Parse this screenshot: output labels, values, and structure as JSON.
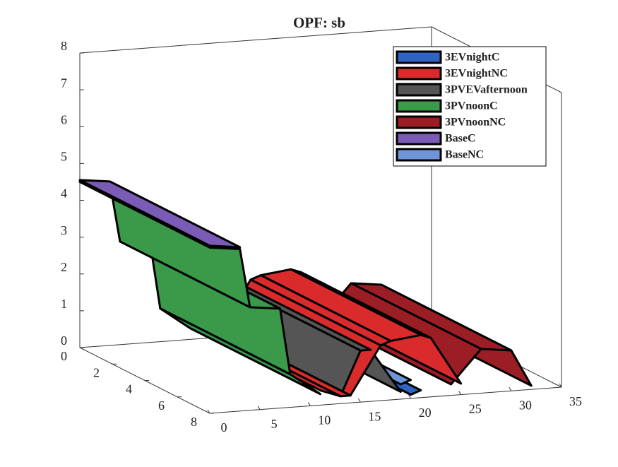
{
  "chart_data": {
    "type": "surface3d",
    "title": "OPF: sb",
    "xlim": [
      0,
      35
    ],
    "xticks": [
      0,
      5,
      10,
      15,
      20,
      25,
      30,
      35
    ],
    "ylim": [
      0,
      8
    ],
    "yticks": [
      0,
      2,
      4,
      6,
      8
    ],
    "zlim": [
      0,
      8
    ],
    "zticks": [
      0,
      1,
      2,
      3,
      4,
      5,
      6,
      7,
      8
    ],
    "legend": "top-right",
    "series": [
      {
        "name": "3EVnightC",
        "color": "#2f64c0",
        "x": [
          20,
          21
        ],
        "values": [
          0.1,
          0.2
        ]
      },
      {
        "name": "3EVnightNC",
        "color": "#d92b2b",
        "x": [
          11,
          13,
          14,
          17,
          18,
          21,
          22,
          25
        ],
        "values": [
          0.4,
          0.2,
          0.2,
          1.5,
          1.6,
          1.7,
          1.6,
          0.3
        ]
      },
      {
        "name": "3PVEVafternoon",
        "color": "#555555",
        "x": [
          13,
          15,
          16,
          19
        ],
        "values": [
          0.2,
          1.4,
          1.4,
          0.2
        ]
      },
      {
        "name": "3PVnoonC",
        "color": "#3a9a4a",
        "x": [
          0,
          3,
          4,
          7,
          8,
          11
        ],
        "values": [
          4.5,
          4.4,
          2.8,
          2.7,
          0.9,
          0.3
        ]
      },
      {
        "name": "3PVnoonNC",
        "color": "#9b1e24",
        "x": [
          24,
          27,
          30,
          32
        ],
        "values": [
          0.3,
          1.2,
          1.1,
          0.1
        ]
      },
      {
        "name": "BaseC",
        "color": "#7a5bb5",
        "x": [
          0,
          3
        ],
        "values": [
          4.55,
          4.45
        ]
      },
      {
        "name": "BaseNC",
        "color": "#6f94d8",
        "x": [
          19,
          20
        ],
        "values": [
          0.4,
          0.5
        ]
      }
    ]
  }
}
